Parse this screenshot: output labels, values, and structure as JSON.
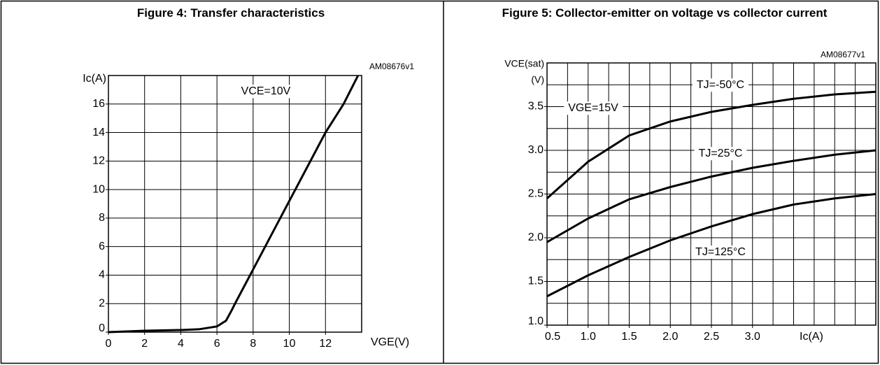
{
  "chart_data": [
    {
      "type": "line",
      "title": "Figure 4: Transfer characteristics",
      "code": "AM08676v1",
      "x_label": "VGE(V)",
      "y_label": "Ic(A)",
      "annotation": "VCE=10V",
      "x": [
        0,
        2,
        4,
        5,
        6,
        6.5,
        6.8,
        7,
        7.5,
        8,
        9,
        10,
        11,
        12,
        13,
        13.8
      ],
      "values": [
        0,
        0.1,
        0.15,
        0.2,
        0.4,
        0.8,
        1.5,
        2,
        3.2,
        4.4,
        6.8,
        9.2,
        11.6,
        14,
        16,
        18
      ],
      "color": "#000000",
      "xlim": [
        0,
        14
      ],
      "xticks": [
        0,
        2,
        4,
        6,
        8,
        10,
        12
      ],
      "xminor": 2,
      "ylim": [
        0,
        18
      ],
      "yticks": [
        0,
        2,
        4,
        6,
        8,
        10,
        12,
        14,
        16
      ],
      "yminor": 2,
      "grid": true
    },
    {
      "type": "line",
      "title": "Figure 5: Collector-emitter on voltage vs collector current",
      "code": "AM08677v1",
      "x_label": "Ic(A)",
      "y_label": [
        "VCE(sat)",
        "(V)"
      ],
      "annotation": "VGE=15V",
      "x": [
        0.5,
        1.0,
        1.5,
        2.0,
        2.5,
        3.0,
        3.5,
        4.0,
        4.5
      ],
      "series": [
        {
          "name": "TJ=-50°C",
          "color": "#000000",
          "values": [
            2.45,
            2.87,
            3.17,
            3.33,
            3.44,
            3.52,
            3.59,
            3.64,
            3.67
          ]
        },
        {
          "name": "TJ=25°C",
          "color": "#000000",
          "values": [
            1.95,
            2.22,
            2.44,
            2.58,
            2.7,
            2.8,
            2.88,
            2.95,
            3.0
          ]
        },
        {
          "name": "TJ=125°C",
          "color": "#000000",
          "values": [
            1.33,
            1.57,
            1.78,
            1.97,
            2.13,
            2.27,
            2.38,
            2.45,
            2.5
          ]
        }
      ],
      "xlim": [
        0.5,
        4.5
      ],
      "xticks": [
        {
          "value": 0.5,
          "label": "0.5"
        },
        {
          "value": 1,
          "label": "1.0"
        },
        {
          "value": 1.5,
          "label": "1.5"
        },
        {
          "value": 2,
          "label": "2.0"
        },
        {
          "value": 2.5,
          "label": "2.5"
        },
        {
          "value": 3,
          "label": "3.0"
        }
      ],
      "xminor": 0.25,
      "ylim": [
        1,
        4
      ],
      "yticks": [
        {
          "value": 1,
          "label": "1.0"
        },
        {
          "value": 1.5,
          "label": "1.5"
        },
        {
          "value": 2,
          "label": "2.0"
        },
        {
          "value": 2.5,
          "label": "2.5"
        },
        {
          "value": 3,
          "label": "3.0"
        },
        {
          "value": 3.5,
          "label": "3.5"
        }
      ],
      "yminor": 0.25,
      "grid": true
    }
  ]
}
